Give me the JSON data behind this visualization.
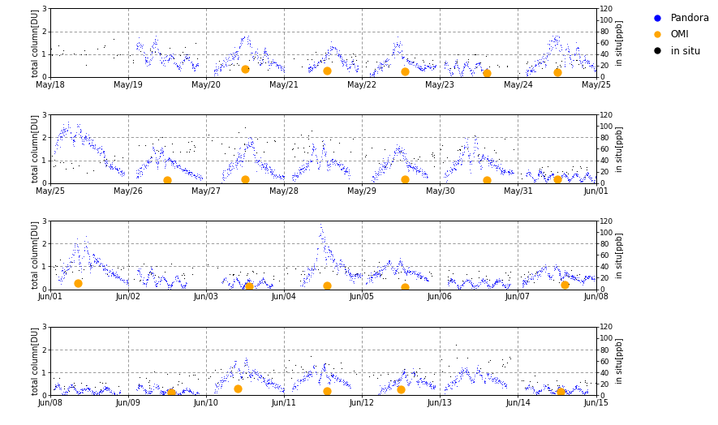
{
  "panels": [
    {
      "x_ticks": [
        "May/18",
        "May/19",
        "May/20",
        "May/21",
        "May/22",
        "May/23",
        "May/24",
        "May/25"
      ]
    },
    {
      "x_ticks": [
        "May/25",
        "May/26",
        "May/27",
        "May/28",
        "May/29",
        "May/30",
        "May/31",
        "Jun/01"
      ]
    },
    {
      "x_ticks": [
        "Jun/01",
        "Jun/02",
        "Jun/03",
        "Jun/04",
        "Jun/05",
        "Jun/06",
        "Jun/07",
        "Jun/08"
      ]
    },
    {
      "x_ticks": [
        "Jun/08",
        "Jun/09",
        "Jun/10",
        "Jun/11",
        "Jun/12",
        "Jun/13",
        "Jun/14",
        "Jun/15"
      ]
    }
  ],
  "ylim_left": [
    0,
    3
  ],
  "ylim_right": [
    0,
    120
  ],
  "yticks_left": [
    0,
    1,
    2,
    3
  ],
  "yticks_right": [
    0,
    20,
    40,
    60,
    80,
    100,
    120
  ],
  "ylabel_left": "total column[DU]",
  "ylabel_right": "in situ[ppb]",
  "pandora_color": "#0000ff",
  "omi_color": "#FFA500",
  "insitu_color": "#000000",
  "legend_labels": [
    "Pandora",
    "OMI",
    "in situ"
  ],
  "background_color": "#ffffff",
  "grid_color": "#888888",
  "dashed_line_color": "#888888"
}
